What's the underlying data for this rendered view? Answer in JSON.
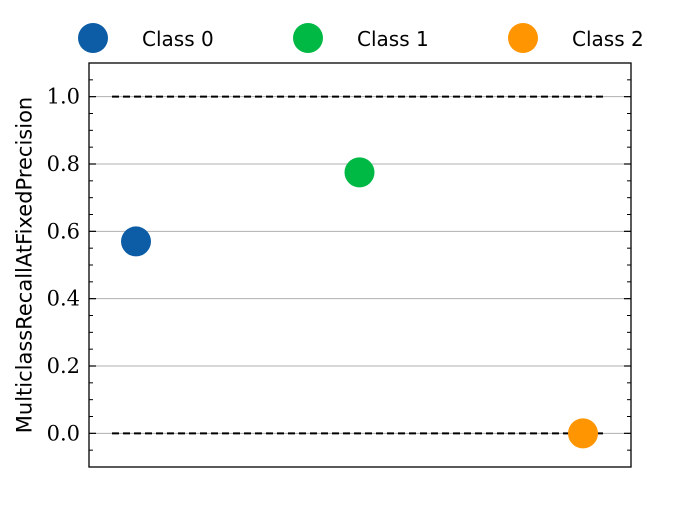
{
  "chart_data": {
    "type": "scatter",
    "title": "",
    "xlabel": "",
    "ylabel": "MulticlassRecallAtFixedPrecision",
    "ylim": [
      -0.1,
      1.1
    ],
    "yticks": [
      "0.0",
      "0.2",
      "0.4",
      "0.6",
      "0.8",
      "1.0"
    ],
    "grid": "horizontal",
    "legend_placement": "top",
    "reference_lines": [
      {
        "y": 1.0,
        "style": "dashed",
        "color": "#000000"
      },
      {
        "y": 0.0,
        "style": "dashed",
        "color": "#000000"
      }
    ],
    "series": [
      {
        "name": "Class 0",
        "color": "#0C5DA5",
        "x": 0,
        "y": 0.57
      },
      {
        "name": "Class 1",
        "color": "#00B945",
        "x": 1,
        "y": 0.775
      },
      {
        "name": "Class 2",
        "color": "#FF9500",
        "x": 2,
        "y": 0.0
      }
    ]
  }
}
